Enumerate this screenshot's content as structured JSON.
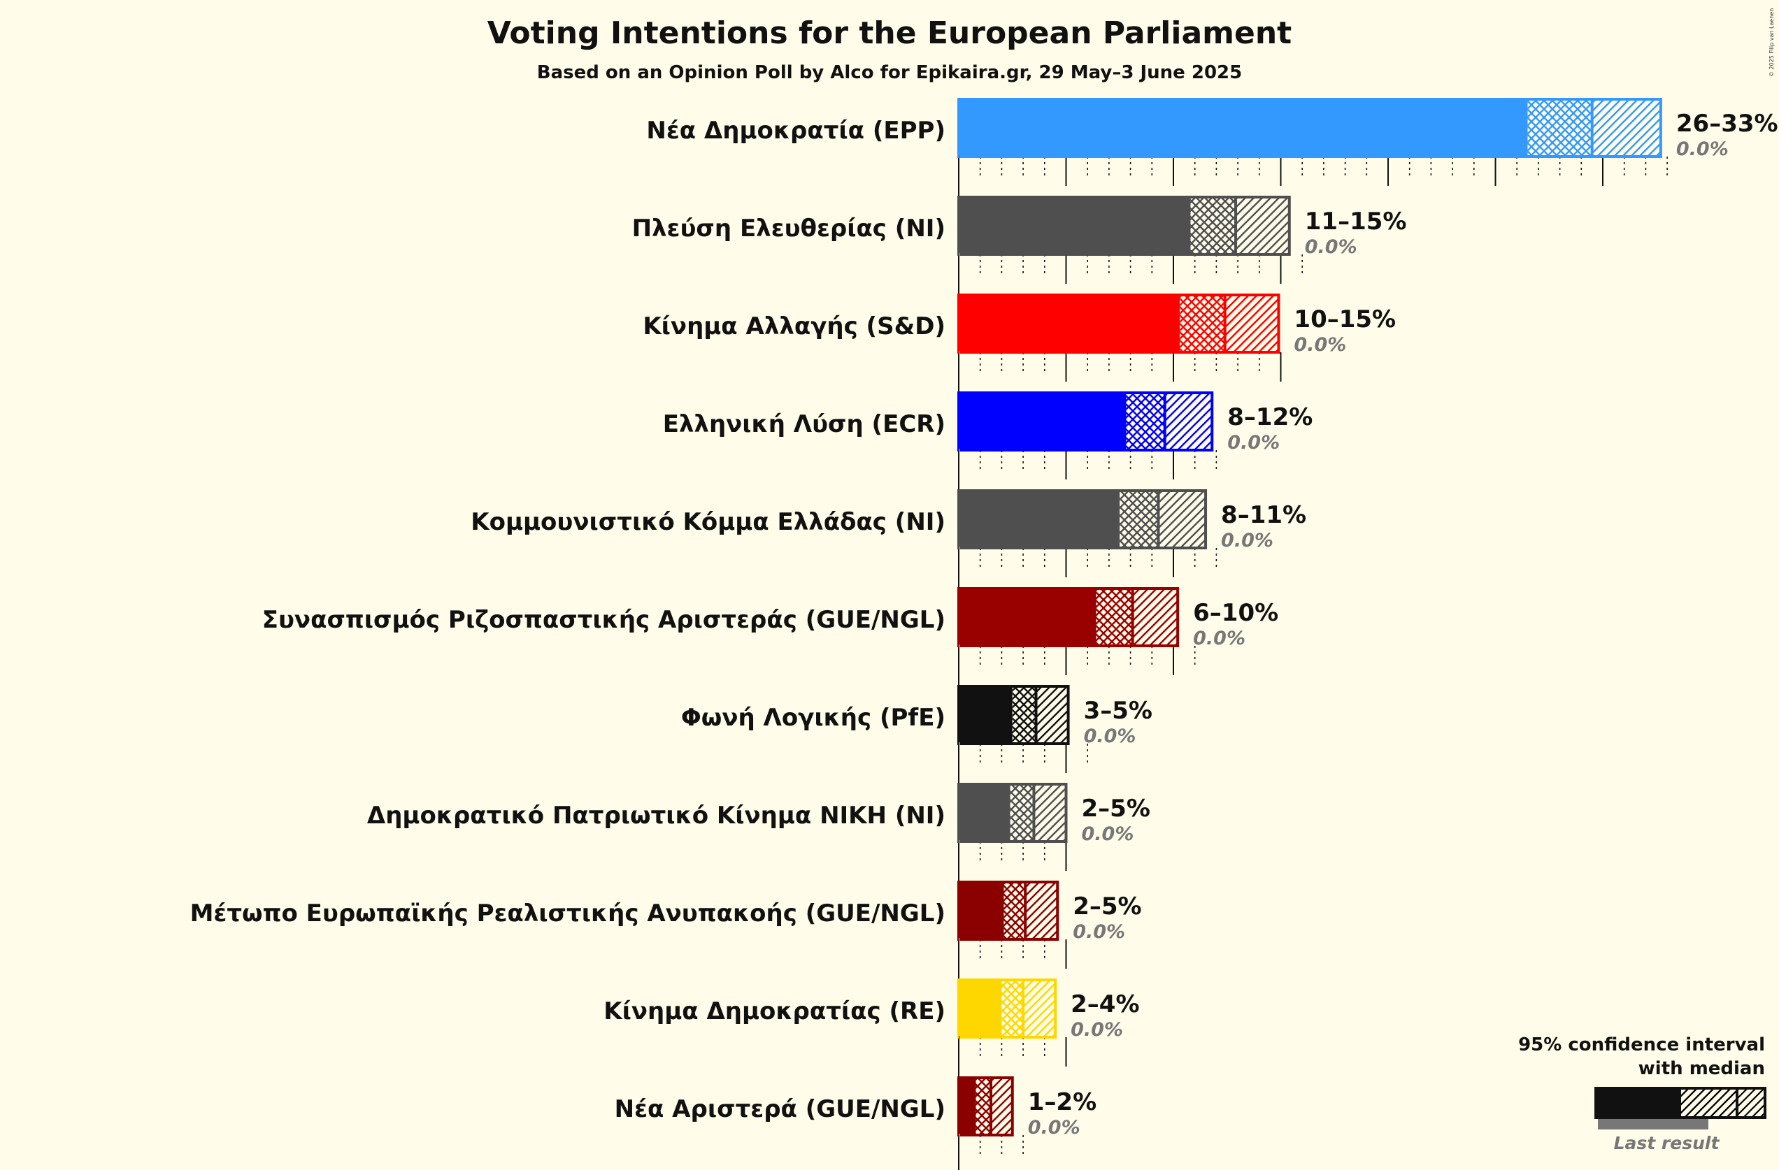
{
  "chart_data": {
    "type": "bar",
    "title": "Voting Intentions for the European Parliament",
    "subtitle": "Based on an Opinion Poll by Alco for Epikaira.gr, 29 May–3 June 2025",
    "credit": "© 2025 Filip van Laenen",
    "series": [
      {
        "party": "Νέα Δημοκρατία (EPP)",
        "color": "#3399ff",
        "ci_low": 26.5,
        "median": 29.5,
        "ci_high": 32.7,
        "range_label": "26–33%",
        "last_result": "0.0%"
      },
      {
        "party": "Πλεύση Ελευθερίας (NI)",
        "color": "#4f4f4f",
        "ci_low": 10.8,
        "median": 12.9,
        "ci_high": 15.4,
        "range_label": "11–15%",
        "last_result": "0.0%"
      },
      {
        "party": "Κίνημα Αλλαγής (S&D)",
        "color": "#ff0000",
        "ci_low": 10.3,
        "median": 12.4,
        "ci_high": 14.9,
        "range_label": "10–15%",
        "last_result": "0.0%"
      },
      {
        "party": "Ελληνική Λύση (ECR)",
        "color": "#0000ff",
        "ci_low": 7.8,
        "median": 9.6,
        "ci_high": 11.8,
        "range_label": "8–12%",
        "last_result": "0.0%"
      },
      {
        "party": "Κομμουνιστικό Κόμμα Ελλάδας (NI)",
        "color": "#4f4f4f",
        "ci_low": 7.5,
        "median": 9.3,
        "ci_high": 11.5,
        "range_label": "8–11%",
        "last_result": "0.0%"
      },
      {
        "party": "Συνασπισμός Ριζοσπαστικής Αριστεράς (GUE/NGL)",
        "color": "#990000",
        "ci_low": 6.4,
        "median": 8.1,
        "ci_high": 10.2,
        "range_label": "6–10%",
        "last_result": "0.0%"
      },
      {
        "party": "Φωνή Λογικής (PfE)",
        "color": "#111111",
        "ci_low": 2.5,
        "median": 3.6,
        "ci_high": 5.1,
        "range_label": "3–5%",
        "last_result": "0.0%"
      },
      {
        "party": "Δημοκρατικό Πατριωτικό Κίνημα ΝΙΚΗ (NI)",
        "color": "#4f4f4f",
        "ci_low": 2.4,
        "median": 3.5,
        "ci_high": 5.0,
        "range_label": "2–5%",
        "last_result": "0.0%"
      },
      {
        "party": "Μέτωπο Ευρωπαϊκής Ρεαλιστικής Ανυπακοής (GUE/NGL)",
        "color": "#8b0000",
        "ci_low": 2.1,
        "median": 3.1,
        "ci_high": 4.6,
        "range_label": "2–5%",
        "last_result": "0.0%"
      },
      {
        "party": "Κίνημα Δημοκρατίας (RE)",
        "color": "#ffd700",
        "ci_low": 2.0,
        "median": 3.0,
        "ci_high": 4.5,
        "range_label": "2–4%",
        "last_result": "0.0%"
      },
      {
        "party": "Νέα Αριστερά (GUE/NGL)",
        "color": "#8b0000",
        "ci_low": 0.8,
        "median": 1.5,
        "ci_high": 2.5,
        "range_label": "1–2%",
        "last_result": "0.0%"
      }
    ],
    "x_axis": {
      "min": 0,
      "max": 33,
      "minor_tick_step": 1,
      "major_tick_step": 5
    }
  },
  "legend": {
    "line1": "95% confidence interval",
    "line2": "with median",
    "last_result_label": "Last result",
    "position": "bottom-right"
  }
}
